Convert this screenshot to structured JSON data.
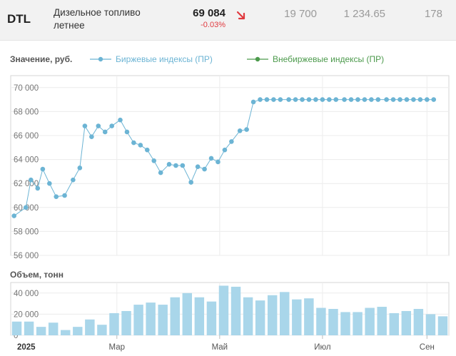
{
  "header": {
    "ticker": "DTL",
    "name": "Дизельное топливо летнее",
    "price": "69 084",
    "change": "-0.03%",
    "stat1": "19 700",
    "stat2": "1 234.65",
    "stat3": "178",
    "change_color": "#e0393e"
  },
  "chart_data": [
    {
      "type": "line",
      "ylabel": "Значение, руб.",
      "ylim": [
        56000,
        71000
      ],
      "yticks": [
        56000,
        58000,
        60000,
        62000,
        64000,
        66000,
        68000,
        70000
      ],
      "ytick_labels": [
        "56 000",
        "58 000",
        "60 000",
        "62 000",
        "64 000",
        "66 000",
        "68 000",
        "70 000"
      ],
      "grid": true,
      "legend_position": "top",
      "series": [
        {
          "name": "Биржевые индексы (ПР)",
          "color": "#6cb4d4",
          "x": [
            "2024-12-30",
            "2025-01-06",
            "2025-01-09",
            "2025-01-13",
            "2025-01-16",
            "2025-01-20",
            "2025-01-24",
            "2025-01-29",
            "2025-02-03",
            "2025-02-07",
            "2025-02-10",
            "2025-02-14",
            "2025-02-18",
            "2025-02-22",
            "2025-02-26",
            "2025-03-03",
            "2025-03-07",
            "2025-03-11",
            "2025-03-15",
            "2025-03-19",
            "2025-03-23",
            "2025-03-27",
            "2025-04-01",
            "2025-04-05",
            "2025-04-09",
            "2025-04-14",
            "2025-04-18",
            "2025-04-22",
            "2025-04-26",
            "2025-04-30",
            "2025-05-04",
            "2025-05-08",
            "2025-05-13",
            "2025-05-17",
            "2025-05-21",
            "2025-05-25",
            "2025-05-29",
            "2025-06-02",
            "2025-06-06",
            "2025-06-11",
            "2025-06-15",
            "2025-06-19",
            "2025-06-23",
            "2025-06-27",
            "2025-07-01",
            "2025-07-05",
            "2025-07-09",
            "2025-07-14",
            "2025-07-18",
            "2025-07-22",
            "2025-07-26",
            "2025-07-30",
            "2025-08-03",
            "2025-08-08",
            "2025-08-12",
            "2025-08-16",
            "2025-08-20",
            "2025-08-24",
            "2025-08-28",
            "2025-09-01",
            "2025-09-05"
          ],
          "y": [
            59300,
            60000,
            62300,
            61600,
            63200,
            62000,
            60900,
            61000,
            62300,
            63300,
            66800,
            65900,
            66800,
            66300,
            66800,
            67300,
            66300,
            65400,
            65200,
            64800,
            63900,
            62900,
            63600,
            63500,
            63500,
            62100,
            63400,
            63200,
            64100,
            63800,
            64800,
            65500,
            66400,
            66500,
            68800,
            69000,
            69000,
            69000,
            69000,
            69000,
            69000,
            69000,
            69000,
            69000,
            69000,
            69000,
            69000,
            69000,
            69000,
            69000,
            69000,
            69000,
            69000,
            69000,
            69000,
            69000,
            69000,
            69000,
            69000,
            69000,
            69000
          ]
        },
        {
          "name": "Внебиржевые индексы (ПР)",
          "color": "#4c9a4c",
          "x": [],
          "y": []
        }
      ]
    },
    {
      "type": "bar",
      "ylabel": "Объем, тонн",
      "ylim": [
        0,
        50000
      ],
      "yticks": [
        0,
        20000,
        40000
      ],
      "ytick_labels": [
        "0",
        "20 000",
        "40 000"
      ],
      "color": "#a9d6ea",
      "values": [
        13000,
        13000,
        8000,
        12000,
        5000,
        8000,
        15000,
        10000,
        21000,
        23000,
        29000,
        31000,
        29000,
        36000,
        40000,
        36000,
        32000,
        47000,
        46000,
        36000,
        33000,
        38000,
        41000,
        34000,
        35000,
        26000,
        25000,
        22000,
        22000,
        26000,
        27000,
        21000,
        23000,
        25000,
        20000,
        18000
      ]
    }
  ],
  "xaxis": {
    "year_label": "2025",
    "month_labels": [
      "Мар",
      "Май",
      "Июл",
      "Сен"
    ]
  }
}
